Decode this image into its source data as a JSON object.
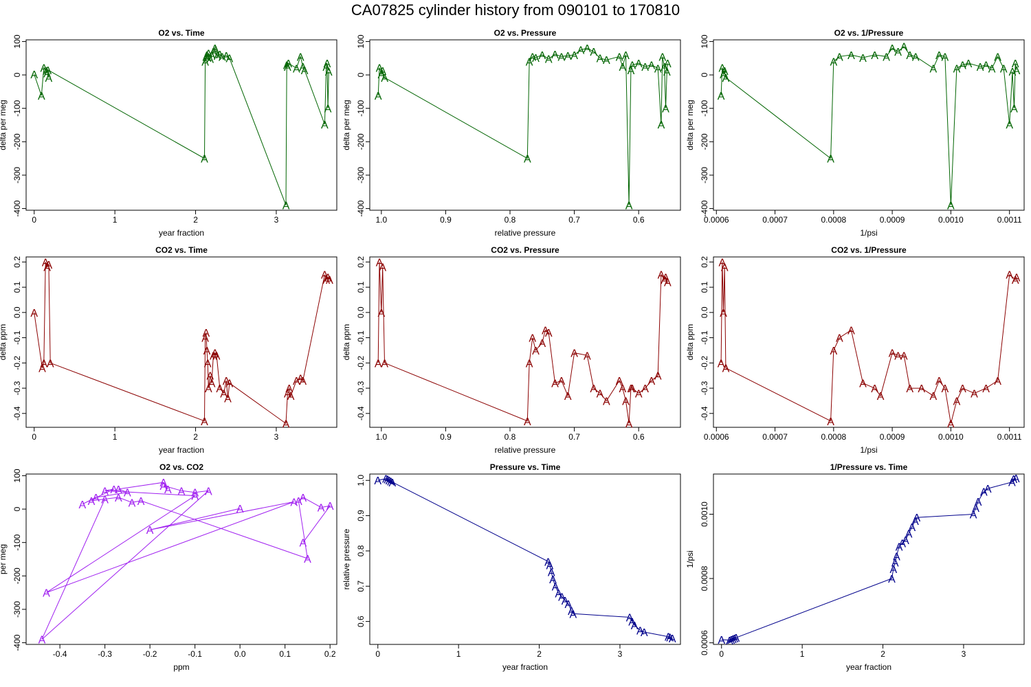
{
  "figure_title": "CA07825   cylinder history from  090101  to  170810",
  "colors": {
    "o2": "#006400",
    "co2": "#8b0000",
    "mix": "#a020f0",
    "pressure": "#00008b"
  },
  "chart_data": [
    {
      "type": "line",
      "title": "O2 vs. Time",
      "xlabel": "year fraction",
      "ylabel": "delta per meg",
      "xlim": [
        -0.1,
        3.75
      ],
      "ylim": [
        -405,
        105
      ],
      "xticks": [
        0,
        1,
        2,
        3
      ],
      "xticklabels": [
        "0",
        "1",
        "2",
        "3"
      ],
      "yticks": [
        -400,
        -300,
        -200,
        -100,
        0,
        100
      ],
      "yticklabels": [
        "-400",
        "-300",
        "-200",
        "-100",
        "0",
        "100"
      ],
      "marker": "A",
      "color": "o2",
      "x": [
        0.0,
        0.09,
        0.12,
        0.15,
        0.16,
        0.18,
        0.17,
        2.11,
        2.12,
        2.13,
        2.14,
        2.15,
        2.16,
        2.18,
        2.2,
        2.22,
        2.24,
        2.25,
        2.27,
        2.3,
        2.33,
        2.38,
        2.42,
        3.12,
        3.13,
        3.14,
        3.15,
        3.25,
        3.3,
        3.33,
        3.35,
        3.6,
        3.62,
        3.63,
        3.64,
        3.65
      ],
      "y": [
        2,
        -62,
        22,
        12,
        5,
        -8,
        15,
        -250,
        40,
        55,
        60,
        52,
        65,
        48,
        60,
        70,
        80,
        75,
        58,
        62,
        55,
        58,
        50,
        -390,
        30,
        25,
        35,
        20,
        55,
        25,
        15,
        -148,
        25,
        35,
        -100,
        10
      ],
      "series": []
    },
    {
      "type": "line",
      "title": "O2 vs. Pressure",
      "xlabel": "relative pressure",
      "ylabel": "delta per meg",
      "xlim": [
        1.018,
        0.535
      ],
      "ylim": [
        -405,
        105
      ],
      "xticks": [
        1.0,
        0.9,
        0.8,
        0.7,
        0.6
      ],
      "xticklabels": [
        "1.0",
        "0.9",
        "0.8",
        "0.7",
        "0.6"
      ],
      "yticks": [
        -400,
        -300,
        -200,
        -100,
        0,
        100
      ],
      "yticklabels": [
        "-400",
        "-300",
        "-200",
        "-100",
        "0",
        "100"
      ],
      "marker": "A",
      "color": "o2",
      "x": [
        1.005,
        1.003,
        1.0,
        0.998,
        0.995,
        0.773,
        0.77,
        0.765,
        0.76,
        0.75,
        0.74,
        0.73,
        0.72,
        0.71,
        0.7,
        0.69,
        0.68,
        0.67,
        0.66,
        0.65,
        0.63,
        0.625,
        0.62,
        0.615,
        0.612,
        0.61,
        0.6,
        0.59,
        0.58,
        0.57,
        0.565,
        0.563,
        0.56,
        0.558,
        0.556,
        0.555
      ],
      "y": [
        -62,
        22,
        2,
        12,
        -8,
        -250,
        40,
        55,
        52,
        60,
        48,
        62,
        55,
        58,
        60,
        75,
        80,
        70,
        50,
        45,
        55,
        25,
        60,
        -390,
        15,
        30,
        35,
        25,
        30,
        20,
        -148,
        55,
        25,
        -100,
        10,
        35
      ],
      "series": []
    },
    {
      "type": "line",
      "title": "O2 vs. 1/Pressure",
      "xlabel": "1/psi",
      "ylabel": "delta per meg",
      "xlim": [
        0.000595,
        0.001125
      ],
      "ylim": [
        -405,
        105
      ],
      "xticks": [
        0.0006,
        0.0007,
        0.0008,
        0.0009,
        0.001,
        0.0011
      ],
      "xticklabels": [
        "0.0006",
        "0.0007",
        "0.0008",
        "0.0009",
        "0.0010",
        "0.0011"
      ],
      "yticks": [
        -400,
        -300,
        -200,
        -100,
        0,
        100
      ],
      "yticklabels": [
        "-400",
        "-300",
        "-200",
        "-100",
        "0",
        "100"
      ],
      "marker": "A",
      "color": "o2",
      "x": [
        0.000608,
        0.00061,
        0.000612,
        0.000614,
        0.000616,
        0.000795,
        0.0008,
        0.00081,
        0.00083,
        0.00085,
        0.00087,
        0.00089,
        0.0009,
        0.00091,
        0.00092,
        0.00093,
        0.00094,
        0.00097,
        0.00098,
        0.00099,
        0.001,
        0.00101,
        0.00102,
        0.00103,
        0.00105,
        0.00106,
        0.00107,
        0.00108,
        0.00109,
        0.0011,
        0.001105,
        0.001108,
        0.00111,
        0.001112
      ],
      "y": [
        -62,
        22,
        2,
        12,
        -8,
        -250,
        40,
        55,
        60,
        52,
        60,
        55,
        80,
        70,
        85,
        60,
        55,
        20,
        60,
        55,
        -390,
        20,
        30,
        35,
        25,
        30,
        20,
        55,
        20,
        -148,
        10,
        -100,
        35,
        15
      ],
      "series": []
    },
    {
      "type": "line",
      "title": "CO2 vs. Time",
      "xlabel": "year fraction",
      "ylabel": "delta ppm",
      "xlim": [
        -0.1,
        3.75
      ],
      "ylim": [
        -0.455,
        0.22
      ],
      "xticks": [
        0,
        1,
        2,
        3
      ],
      "xticklabels": [
        "0",
        "1",
        "2",
        "3"
      ],
      "yticks": [
        -0.4,
        -0.3,
        -0.2,
        -0.1,
        0.0,
        0.1,
        0.2
      ],
      "yticklabels": [
        "-0.4",
        "-0.3",
        "-0.2",
        "-0.1",
        "0.0",
        "0.1",
        "0.2"
      ],
      "marker": "A",
      "color": "co2",
      "x": [
        0.0,
        0.1,
        0.12,
        0.14,
        0.16,
        0.18,
        0.2,
        2.11,
        2.12,
        2.13,
        2.14,
        2.15,
        2.16,
        2.18,
        2.2,
        2.22,
        2.24,
        2.26,
        2.3,
        2.35,
        2.38,
        2.4,
        2.42,
        3.12,
        3.14,
        3.16,
        3.18,
        3.25,
        3.3,
        3.33,
        3.6,
        3.62,
        3.64,
        3.66
      ],
      "y": [
        0.0,
        -0.22,
        -0.2,
        0.2,
        0.18,
        0.19,
        -0.2,
        -0.43,
        -0.1,
        -0.08,
        -0.15,
        -0.2,
        -0.3,
        -0.25,
        -0.28,
        -0.17,
        -0.16,
        -0.17,
        -0.3,
        -0.32,
        -0.27,
        -0.34,
        -0.28,
        -0.44,
        -0.32,
        -0.3,
        -0.33,
        -0.27,
        -0.26,
        -0.27,
        0.15,
        0.13,
        0.14,
        0.13
      ],
      "series": []
    },
    {
      "type": "line",
      "title": "CO2 vs. Pressure",
      "xlabel": "relative pressure",
      "ylabel": "delta ppm",
      "xlim": [
        1.018,
        0.535
      ],
      "ylim": [
        -0.455,
        0.22
      ],
      "xticks": [
        1.0,
        0.9,
        0.8,
        0.7,
        0.6
      ],
      "xticklabels": [
        "1.0",
        "0.9",
        "0.8",
        "0.7",
        "0.6"
      ],
      "yticks": [
        -0.4,
        -0.3,
        -0.2,
        -0.1,
        0.0,
        0.1,
        0.2
      ],
      "yticklabels": [
        "-0.4",
        "-0.3",
        "-0.2",
        "-0.1",
        "0.0",
        "0.1",
        "0.2"
      ],
      "marker": "A",
      "color": "co2",
      "x": [
        1.005,
        1.003,
        1.0,
        0.998,
        0.995,
        0.773,
        0.77,
        0.765,
        0.76,
        0.75,
        0.745,
        0.74,
        0.73,
        0.72,
        0.71,
        0.7,
        0.68,
        0.67,
        0.66,
        0.65,
        0.63,
        0.625,
        0.62,
        0.615,
        0.612,
        0.61,
        0.6,
        0.59,
        0.58,
        0.57,
        0.565,
        0.56,
        0.558,
        0.555
      ],
      "y": [
        -0.2,
        0.2,
        0.0,
        0.18,
        -0.2,
        -0.43,
        -0.2,
        -0.1,
        -0.15,
        -0.12,
        -0.07,
        -0.08,
        -0.28,
        -0.27,
        -0.33,
        -0.16,
        -0.17,
        -0.3,
        -0.32,
        -0.35,
        -0.27,
        -0.3,
        -0.35,
        -0.44,
        -0.3,
        -0.3,
        -0.32,
        -0.3,
        -0.27,
        -0.25,
        0.15,
        0.13,
        0.14,
        0.12
      ],
      "series": []
    },
    {
      "type": "line",
      "title": "CO2 vs. 1/Pressure",
      "xlabel": "1/psi",
      "ylabel": "delta ppm",
      "xlim": [
        0.000595,
        0.001125
      ],
      "ylim": [
        -0.455,
        0.22
      ],
      "xticks": [
        0.0006,
        0.0007,
        0.0008,
        0.0009,
        0.001,
        0.0011
      ],
      "xticklabels": [
        "0.0006",
        "0.0007",
        "0.0008",
        "0.0009",
        "0.0010",
        "0.0011"
      ],
      "yticks": [
        -0.4,
        -0.3,
        -0.2,
        -0.1,
        0.0,
        0.1,
        0.2
      ],
      "yticklabels": [
        "-0.4",
        "-0.3",
        "-0.2",
        "-0.1",
        "0.0",
        "0.1",
        "0.2"
      ],
      "marker": "A",
      "color": "co2",
      "x": [
        0.000608,
        0.00061,
        0.000612,
        0.000614,
        0.000616,
        0.000795,
        0.0008,
        0.00081,
        0.00083,
        0.00085,
        0.00087,
        0.00088,
        0.0009,
        0.00091,
        0.00092,
        0.00093,
        0.00095,
        0.00097,
        0.00098,
        0.00099,
        0.001,
        0.00101,
        0.00102,
        0.00104,
        0.00106,
        0.00108,
        0.0011,
        0.00111,
        0.001112
      ],
      "y": [
        -0.2,
        0.2,
        0.0,
        0.18,
        -0.22,
        -0.43,
        -0.15,
        -0.1,
        -0.07,
        -0.28,
        -0.3,
        -0.33,
        -0.16,
        -0.17,
        -0.17,
        -0.3,
        -0.3,
        -0.33,
        -0.27,
        -0.3,
        -0.44,
        -0.35,
        -0.3,
        -0.32,
        -0.3,
        -0.27,
        0.15,
        0.13,
        0.14
      ],
      "series": []
    },
    {
      "type": "line",
      "title": "O2 vs. CO2",
      "xlabel": "ppm",
      "ylabel": "per meg",
      "xlim": [
        -0.475,
        0.215
      ],
      "ylim": [
        -405,
        105
      ],
      "xticks": [
        -0.4,
        -0.3,
        -0.2,
        -0.1,
        0.0,
        0.1,
        0.2
      ],
      "xticklabels": [
        "-0.4",
        "-0.3",
        "-0.2",
        "-0.1",
        "0.0",
        "0.1",
        "0.2"
      ],
      "yticks": [
        -400,
        -300,
        -200,
        -100,
        0,
        100
      ],
      "yticklabels": [
        "-400",
        "-300",
        "-200",
        "-100",
        "0",
        "100"
      ],
      "marker": "A",
      "color": "mix",
      "x": [
        0.0,
        -0.2,
        0.12,
        -0.43,
        -0.1,
        -0.3,
        -0.28,
        -0.35,
        -0.32,
        -0.25,
        -0.27,
        -0.17,
        -0.16,
        -0.17,
        -0.13,
        -0.1,
        -0.07,
        -0.44,
        -0.3,
        -0.33,
        -0.27,
        -0.24,
        -0.22,
        0.15,
        0.13,
        0.14,
        0.18,
        0.2,
        0.14
      ],
      "y": [
        2,
        -62,
        22,
        -250,
        40,
        55,
        60,
        15,
        35,
        50,
        60,
        80,
        60,
        70,
        55,
        50,
        55,
        -390,
        30,
        25,
        35,
        20,
        25,
        -148,
        25,
        35,
        5,
        10,
        -100
      ],
      "series": []
    },
    {
      "type": "line",
      "title": "Pressure vs. Time",
      "xlabel": "year fraction",
      "ylabel": "relative pressure",
      "xlim": [
        -0.1,
        3.75
      ],
      "ylim": [
        0.535,
        1.018
      ],
      "xticks": [
        0,
        1,
        2,
        3
      ],
      "xticklabels": [
        "0",
        "1",
        "2",
        "3"
      ],
      "yticks": [
        0.6,
        0.7,
        0.8,
        0.9,
        1.0
      ],
      "yticklabels": [
        "0.6",
        "0.7",
        "0.8",
        "0.9",
        "1.0"
      ],
      "marker": "A",
      "color": "pressure",
      "x": [
        0.0,
        0.1,
        0.12,
        0.14,
        0.16,
        0.18,
        2.11,
        2.13,
        2.15,
        2.17,
        2.2,
        2.24,
        2.28,
        2.32,
        2.36,
        2.4,
        2.42,
        3.12,
        3.15,
        3.18,
        3.25,
        3.3,
        3.6,
        3.62,
        3.65
      ],
      "y": [
        1.0,
        1.005,
        1.003,
        1.0,
        0.998,
        0.995,
        0.77,
        0.76,
        0.74,
        0.72,
        0.7,
        0.68,
        0.67,
        0.66,
        0.65,
        0.63,
        0.622,
        0.612,
        0.6,
        0.59,
        0.575,
        0.57,
        0.557,
        0.555,
        0.553
      ],
      "series": []
    },
    {
      "type": "line",
      "title": "1/Pressure vs. Time",
      "xlabel": "year fraction",
      "ylabel": "1/psi",
      "xlim": [
        -0.1,
        3.75
      ],
      "ylim": [
        0.000595,
        0.001125
      ],
      "xticks": [
        0,
        1,
        2,
        3
      ],
      "xticklabels": [
        "0",
        "1",
        "2",
        "3"
      ],
      "yticks": [
        0.0006,
        0.0008,
        0.001
      ],
      "yticklabels": [
        "0.0006",
        "0.0008",
        "0.0010"
      ],
      "marker": "A",
      "color": "pressure",
      "x": [
        0.0,
        0.1,
        0.12,
        0.14,
        0.16,
        0.18,
        2.11,
        2.13,
        2.15,
        2.17,
        2.2,
        2.24,
        2.28,
        2.32,
        2.36,
        2.4,
        2.42,
        3.12,
        3.15,
        3.18,
        3.25,
        3.3,
        3.6,
        3.62,
        3.65
      ],
      "y": [
        0.00061,
        0.000608,
        0.00061,
        0.000612,
        0.000614,
        0.000616,
        0.0008,
        0.00083,
        0.00085,
        0.00087,
        0.0009,
        0.00091,
        0.00092,
        0.00094,
        0.00096,
        0.00098,
        0.00099,
        0.001,
        0.00102,
        0.00104,
        0.00107,
        0.00108,
        0.0011,
        0.00111,
        0.001112
      ],
      "series": []
    }
  ]
}
